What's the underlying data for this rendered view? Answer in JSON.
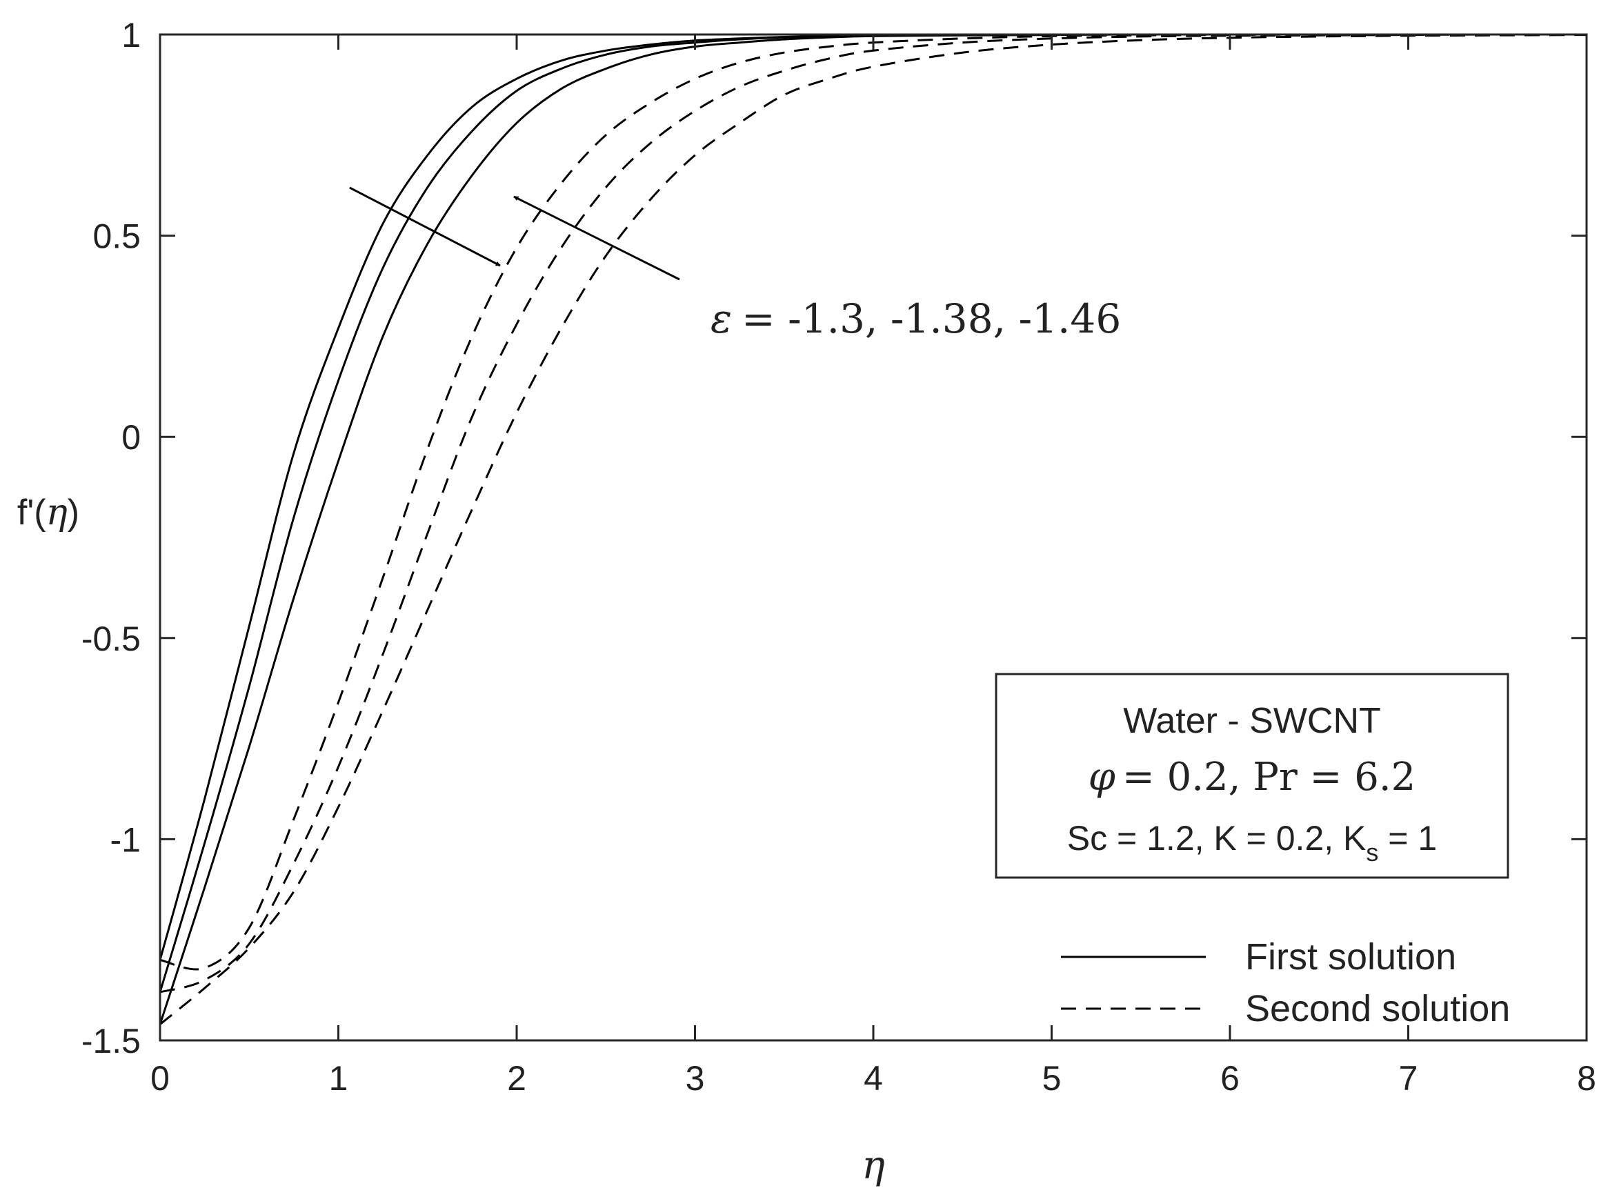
{
  "chart_data": {
    "type": "line",
    "title": "",
    "xlabel": "η",
    "ylabel": {
      "prefix": "f'(",
      "var": "η",
      "suffix": ")"
    },
    "xlim": [
      0,
      8
    ],
    "ylim": [
      -1.5,
      1
    ],
    "xticks": [
      0,
      1,
      2,
      3,
      4,
      5,
      6,
      7,
      8
    ],
    "yticks": [
      -1.5,
      -1,
      -0.5,
      0,
      0.5,
      1
    ],
    "xtick_labels": [
      "0",
      "1",
      "2",
      "3",
      "4",
      "5",
      "6",
      "7",
      "8"
    ],
    "ytick_labels": [
      "-1.5",
      "-1",
      "-0.5",
      "0",
      "0.5",
      "1"
    ],
    "grid": false,
    "legend_position": "bottom-right",
    "legend": [
      {
        "label": "First solution",
        "style": "solid"
      },
      {
        "label": "Second solution",
        "style": "dashed"
      }
    ],
    "annotation": {
      "symbol": "ε",
      "values": "= -1.3, -1.38, -1.46"
    },
    "info_box": {
      "line1": "Water - SWCNT",
      "line2": {
        "phi_symbol": "φ",
        "phi_text": "= 0.2, ",
        "pr_text": "Pr = 6.2"
      },
      "line3": {
        "text": "Sc = 1.2, K = 0.2, K",
        "subscript": "s",
        "tail": " = 1"
      }
    },
    "x": [
      0,
      0.25,
      0.5,
      0.75,
      1,
      1.25,
      1.5,
      1.75,
      2,
      2.25,
      2.5,
      2.75,
      3,
      3.25,
      3.5,
      3.75,
      4,
      4.5,
      5,
      5.5,
      6,
      6.5,
      7,
      7.5,
      8
    ],
    "series": [
      {
        "name": "First solution, ε = -1.3",
        "style": "solid",
        "values": [
          -1.3,
          -0.9,
          -0.47,
          -0.04,
          0.27,
          0.53,
          0.7,
          0.82,
          0.89,
          0.935,
          0.96,
          0.975,
          0.985,
          0.99,
          0.994,
          0.996,
          0.998,
          0.999,
          1,
          1,
          1,
          1,
          1,
          1,
          1
        ]
      },
      {
        "name": "First solution, ε = -1.38",
        "style": "solid",
        "values": [
          -1.38,
          -1.01,
          -0.62,
          -0.2,
          0.14,
          0.42,
          0.62,
          0.76,
          0.86,
          0.915,
          0.95,
          0.97,
          0.98,
          0.988,
          0.993,
          0.996,
          0.997,
          0.999,
          1,
          1,
          1,
          1,
          1,
          1,
          1
        ]
      },
      {
        "name": "First solution, ε = -1.46",
        "style": "solid",
        "values": [
          -1.46,
          -1.12,
          -0.77,
          -0.4,
          -0.06,
          0.25,
          0.48,
          0.65,
          0.78,
          0.865,
          0.915,
          0.95,
          0.97,
          0.98,
          0.988,
          0.993,
          0.996,
          0.998,
          0.999,
          1,
          1,
          1,
          1,
          1,
          1
        ]
      },
      {
        "name": "Second solution, ε = -1.3",
        "style": "dashed",
        "values": [
          -1.3,
          -1.32,
          -1.22,
          -0.95,
          -0.66,
          -0.35,
          -0.03,
          0.25,
          0.47,
          0.63,
          0.75,
          0.83,
          0.89,
          0.93,
          0.955,
          0.97,
          0.98,
          0.99,
          0.996,
          0.998,
          0.999,
          1,
          1,
          1,
          1
        ]
      },
      {
        "name": "Second solution, ε = -1.38",
        "style": "dashed",
        "values": [
          -1.38,
          -1.35,
          -1.26,
          -1.06,
          -0.82,
          -0.54,
          -0.24,
          0.05,
          0.28,
          0.47,
          0.62,
          0.73,
          0.81,
          0.87,
          0.91,
          0.94,
          0.96,
          0.98,
          0.99,
          0.995,
          0.997,
          0.998,
          0.999,
          1,
          1
        ]
      },
      {
        "name": "Second solution, ε = -1.46",
        "style": "dashed",
        "values": [
          -1.46,
          -1.37,
          -1.27,
          -1.13,
          -0.92,
          -0.68,
          -0.43,
          -0.18,
          0.06,
          0.27,
          0.45,
          0.59,
          0.7,
          0.78,
          0.85,
          0.89,
          0.92,
          0.955,
          0.975,
          0.986,
          0.992,
          0.995,
          0.997,
          0.998,
          0.999
        ]
      }
    ]
  }
}
